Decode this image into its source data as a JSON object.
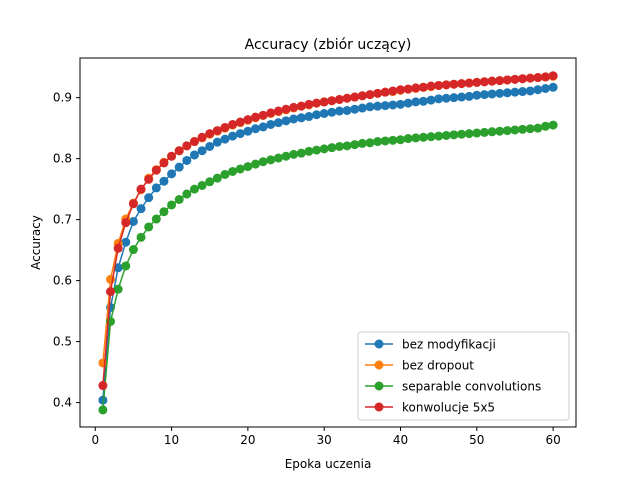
{
  "chart_data": {
    "type": "line",
    "title": "Accuracy (zbiór uczący)",
    "xlabel": "Epoka uczenia",
    "ylabel": "Accuracy",
    "xlim": [
      -2,
      63
    ],
    "ylim": [
      0.36,
      0.965
    ],
    "x_ticks": [
      0,
      10,
      20,
      30,
      40,
      50,
      60
    ],
    "y_ticks": [
      0.4,
      0.5,
      0.6,
      0.7,
      0.8,
      0.9
    ],
    "grid": false,
    "legend_position": "lower-right",
    "x": [
      1,
      2,
      3,
      4,
      5,
      6,
      7,
      8,
      9,
      10,
      11,
      12,
      13,
      14,
      15,
      16,
      17,
      18,
      19,
      20,
      21,
      22,
      23,
      24,
      25,
      26,
      27,
      28,
      29,
      30,
      31,
      32,
      33,
      34,
      35,
      36,
      37,
      38,
      39,
      40,
      41,
      42,
      43,
      44,
      45,
      46,
      47,
      48,
      49,
      50,
      51,
      52,
      53,
      54,
      55,
      56,
      57,
      58,
      59,
      60
    ],
    "series": [
      {
        "name": "bez modyfikacji",
        "color": "#1f77b4",
        "values": [
          0.404,
          0.556,
          0.621,
          0.663,
          0.697,
          0.718,
          0.736,
          0.752,
          0.763,
          0.775,
          0.786,
          0.797,
          0.806,
          0.813,
          0.82,
          0.827,
          0.832,
          0.837,
          0.841,
          0.845,
          0.849,
          0.852,
          0.856,
          0.859,
          0.862,
          0.865,
          0.867,
          0.869,
          0.872,
          0.874,
          0.876,
          0.878,
          0.879,
          0.881,
          0.883,
          0.885,
          0.886,
          0.887,
          0.888,
          0.889,
          0.891,
          0.893,
          0.894,
          0.896,
          0.898,
          0.899,
          0.9,
          0.901,
          0.902,
          0.904,
          0.905,
          0.906,
          0.907,
          0.908,
          0.909,
          0.91,
          0.911,
          0.913,
          0.915,
          0.917
        ]
      },
      {
        "name": "bez dropout",
        "color": "#ff7f0e",
        "values": [
          0.465,
          0.602,
          0.661,
          0.701,
          0.727,
          0.749,
          0.768,
          0.782,
          0.794,
          0.804,
          0.813,
          0.821,
          0.828,
          0.834,
          0.84,
          0.845,
          0.85,
          0.855,
          0.859,
          0.863,
          0.867,
          0.871,
          0.874,
          0.877,
          0.88,
          0.883,
          0.886,
          0.888,
          0.891,
          0.893,
          0.895,
          0.897,
          0.899,
          0.901,
          0.903,
          0.905,
          0.907,
          0.909,
          0.91,
          0.912,
          0.914,
          0.915,
          0.917,
          0.918,
          0.92,
          0.921,
          0.922,
          0.923,
          0.924,
          0.925,
          0.926,
          0.927,
          0.928,
          0.929,
          0.93,
          0.931,
          0.932,
          0.933,
          0.934,
          0.935
        ]
      },
      {
        "name": "separable convolutions",
        "color": "#2ca02c",
        "values": [
          0.388,
          0.533,
          0.586,
          0.624,
          0.651,
          0.671,
          0.688,
          0.701,
          0.713,
          0.724,
          0.733,
          0.742,
          0.75,
          0.756,
          0.762,
          0.768,
          0.774,
          0.779,
          0.783,
          0.787,
          0.791,
          0.795,
          0.798,
          0.801,
          0.804,
          0.807,
          0.809,
          0.812,
          0.814,
          0.816,
          0.818,
          0.82,
          0.821,
          0.823,
          0.825,
          0.826,
          0.828,
          0.829,
          0.83,
          0.831,
          0.833,
          0.834,
          0.835,
          0.836,
          0.837,
          0.838,
          0.839,
          0.84,
          0.841,
          0.842,
          0.843,
          0.844,
          0.845,
          0.846,
          0.847,
          0.848,
          0.849,
          0.85,
          0.853,
          0.855
        ]
      },
      {
        "name": "konwolucje 5x5",
        "color": "#d62728",
        "values": [
          0.428,
          0.582,
          0.653,
          0.695,
          0.726,
          0.75,
          0.766,
          0.781,
          0.793,
          0.804,
          0.813,
          0.821,
          0.828,
          0.835,
          0.841,
          0.846,
          0.851,
          0.856,
          0.86,
          0.864,
          0.868,
          0.871,
          0.875,
          0.878,
          0.881,
          0.884,
          0.886,
          0.889,
          0.891,
          0.893,
          0.895,
          0.897,
          0.899,
          0.901,
          0.903,
          0.905,
          0.907,
          0.909,
          0.911,
          0.913,
          0.914,
          0.916,
          0.917,
          0.919,
          0.92,
          0.921,
          0.922,
          0.923,
          0.924,
          0.925,
          0.926,
          0.927,
          0.928,
          0.929,
          0.93,
          0.931,
          0.932,
          0.933,
          0.934,
          0.936
        ]
      }
    ]
  }
}
